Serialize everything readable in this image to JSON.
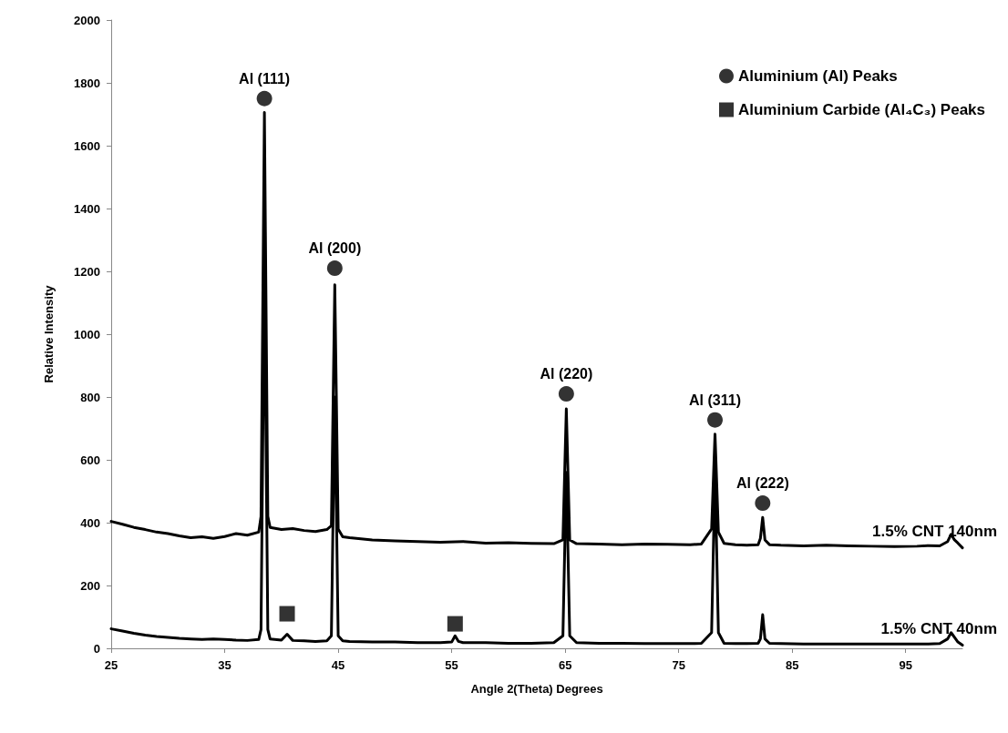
{
  "chart_data": {
    "type": "line",
    "xlabel": "Angle 2(Theta) Degrees",
    "ylabel": "Relative Intensity",
    "xlim": [
      25,
      100
    ],
    "xticks": [
      25,
      35,
      45,
      55,
      65,
      75,
      85,
      95
    ],
    "ylim": [
      0,
      2000
    ],
    "yticks": [
      0,
      200,
      400,
      600,
      800,
      1000,
      1200,
      1400,
      1600,
      1800,
      2000
    ],
    "grid": false,
    "legend": "top right",
    "line_style": "solid",
    "annotations": [
      {
        "text": "Al (111)",
        "x": 38.5,
        "y": 1750
      },
      {
        "text": "Al (200)",
        "x": 44.7,
        "y": 1210
      },
      {
        "text": "Al (220)",
        "x": 65.1,
        "y": 810
      },
      {
        "text": "Al (311)",
        "x": 78.2,
        "y": 727
      },
      {
        "text": "Al (222)",
        "x": 82.4,
        "y": 462
      }
    ],
    "series": [
      {
        "name": "1.5% CNT 140nm",
        "color": "#000000",
        "marker": "none",
        "x": [
          25,
          26,
          27,
          28,
          29,
          30,
          31,
          32,
          33,
          34,
          35,
          36,
          37,
          38,
          38.2,
          38.5,
          38.8,
          39,
          40,
          41,
          42,
          43,
          44,
          44.4,
          44.7,
          45,
          45.4,
          46,
          48,
          50,
          52,
          54,
          56,
          58,
          60,
          62,
          64,
          64.8,
          65.1,
          65.4,
          66,
          68,
          70,
          72,
          74,
          76,
          77,
          77.9,
          78.2,
          78.5,
          79,
          80,
          81,
          82,
          82.2,
          82.4,
          82.6,
          83,
          84,
          86,
          88,
          90,
          92,
          94,
          96,
          97,
          98,
          98.7,
          99,
          99.3,
          99.6,
          100
        ],
        "values": [
          404,
          395,
          385,
          378,
          370,
          365,
          358,
          352,
          355,
          350,
          356,
          365,
          360,
          370,
          420,
          1706,
          420,
          385,
          378,
          381,
          375,
          372,
          378,
          390,
          1157,
          380,
          355,
          352,
          345,
          342,
          340,
          338,
          340,
          335,
          336,
          334,
          333,
          345,
          762,
          345,
          333,
          332,
          330,
          332,
          331,
          330,
          332,
          380,
          682,
          370,
          334,
          330,
          328,
          330,
          350,
          417,
          345,
          330,
          328,
          326,
          328,
          326,
          325,
          324,
          325,
          327,
          326,
          340,
          363,
          345,
          335,
          320
        ]
      },
      {
        "name": "1.5% CNT 40nm",
        "color": "#000000",
        "marker": "none",
        "x": [
          25,
          26,
          27,
          28,
          29,
          30,
          31,
          32,
          33,
          34,
          35,
          36,
          37,
          38,
          38.2,
          38.5,
          38.8,
          39,
          40,
          40.5,
          41,
          42,
          43,
          44,
          44.4,
          44.7,
          45,
          45.4,
          46,
          48,
          50,
          52,
          54,
          55,
          55.3,
          55.6,
          56,
          58,
          60,
          62,
          64,
          64.8,
          65.1,
          65.4,
          66,
          68,
          70,
          72,
          74,
          76,
          77,
          77.9,
          78.2,
          78.5,
          79,
          80,
          81,
          82,
          82.2,
          82.4,
          82.6,
          83,
          84,
          86,
          88,
          90,
          92,
          94,
          96,
          97,
          98,
          98.7,
          99,
          99.3,
          99.6,
          100
        ],
        "values": [
          62,
          55,
          48,
          42,
          38,
          35,
          32,
          30,
          28,
          30,
          28,
          26,
          25,
          28,
          60,
          1200,
          60,
          30,
          26,
          45,
          25,
          24,
          22,
          24,
          40,
          800,
          40,
          24,
          22,
          20,
          20,
          18,
          18,
          20,
          40,
          22,
          18,
          18,
          16,
          16,
          18,
          40,
          560,
          40,
          18,
          16,
          16,
          15,
          15,
          15,
          16,
          50,
          566,
          50,
          16,
          15,
          15,
          16,
          30,
          107,
          30,
          16,
          15,
          14,
          14,
          14,
          14,
          14,
          14,
          14,
          15,
          30,
          50,
          35,
          20,
          10
        ]
      },
      {
        "type": "scatter",
        "name": "Aluminium (Al) Peaks",
        "color": "#000000",
        "marker": "circle",
        "x": [
          38.5,
          44.7,
          65.1,
          78.2,
          82.4
        ],
        "values": [
          1750,
          1210,
          810,
          727,
          462
        ]
      },
      {
        "type": "scatter",
        "name": "Aluminium Carbide (Al₄C₃) Peaks",
        "color": "#000000",
        "marker": "square",
        "x": [
          40.5,
          55.3
        ],
        "values": [
          110,
          78
        ]
      }
    ]
  }
}
